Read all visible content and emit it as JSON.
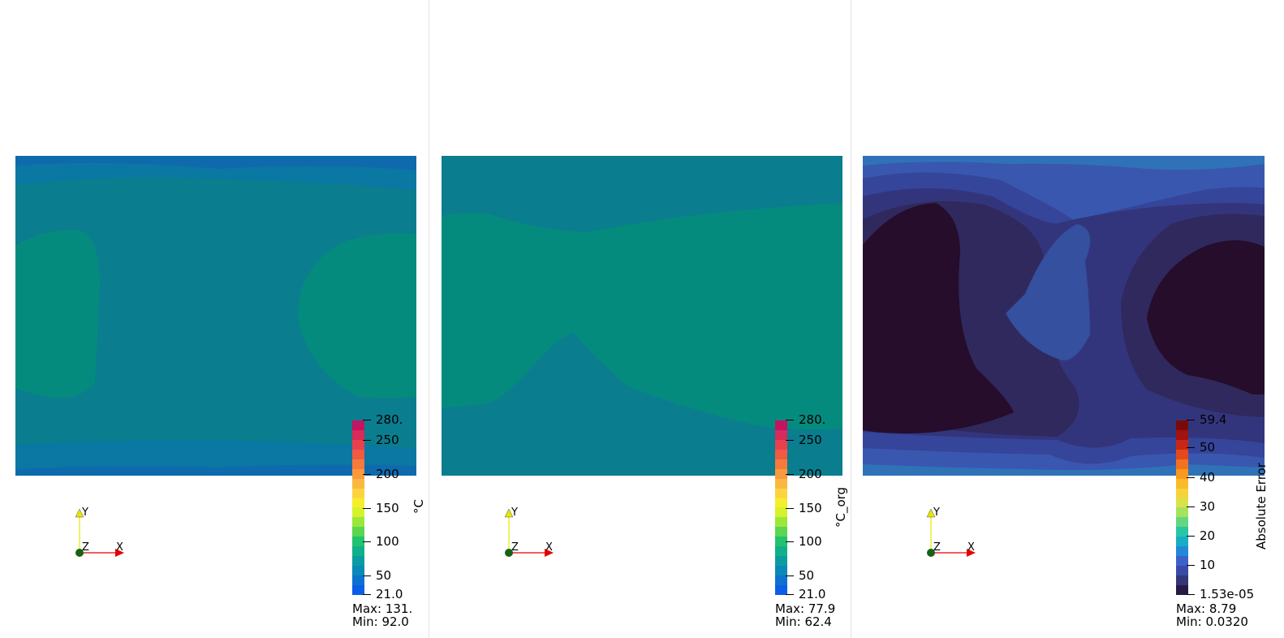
{
  "panels": [
    {
      "bar_title": "°C",
      "ticks": [
        "280.",
        "250",
        "200",
        "150",
        "100",
        "50",
        "21.0"
      ],
      "max_label": "Max: 131.",
      "min_label": "Min: 92.0"
    },
    {
      "bar_title": "°C_org",
      "ticks": [
        "280.",
        "250",
        "200",
        "150",
        "100",
        "50",
        "21.0"
      ],
      "max_label": "Max: 77.9",
      "min_label": "Min: 62.4"
    },
    {
      "bar_title": "Absolute Error",
      "ticks": [
        "59.4",
        "50",
        "40",
        "30",
        "20",
        "10",
        "1.53e-05"
      ],
      "max_label": "Max: 8.79",
      "min_label": "Min: 0.0320"
    }
  ],
  "axes_labels": {
    "x": "X",
    "y": "Y",
    "z": "Z"
  },
  "colors": {
    "temp_low": "#0a7d8f",
    "temp_mid": "#058b7e",
    "temp_edge": "#0e6fb0",
    "err_dark": "#250d2b",
    "err_mid": "#30295e",
    "err_blue": "#34509f",
    "err_light": "#2f72b8"
  }
}
